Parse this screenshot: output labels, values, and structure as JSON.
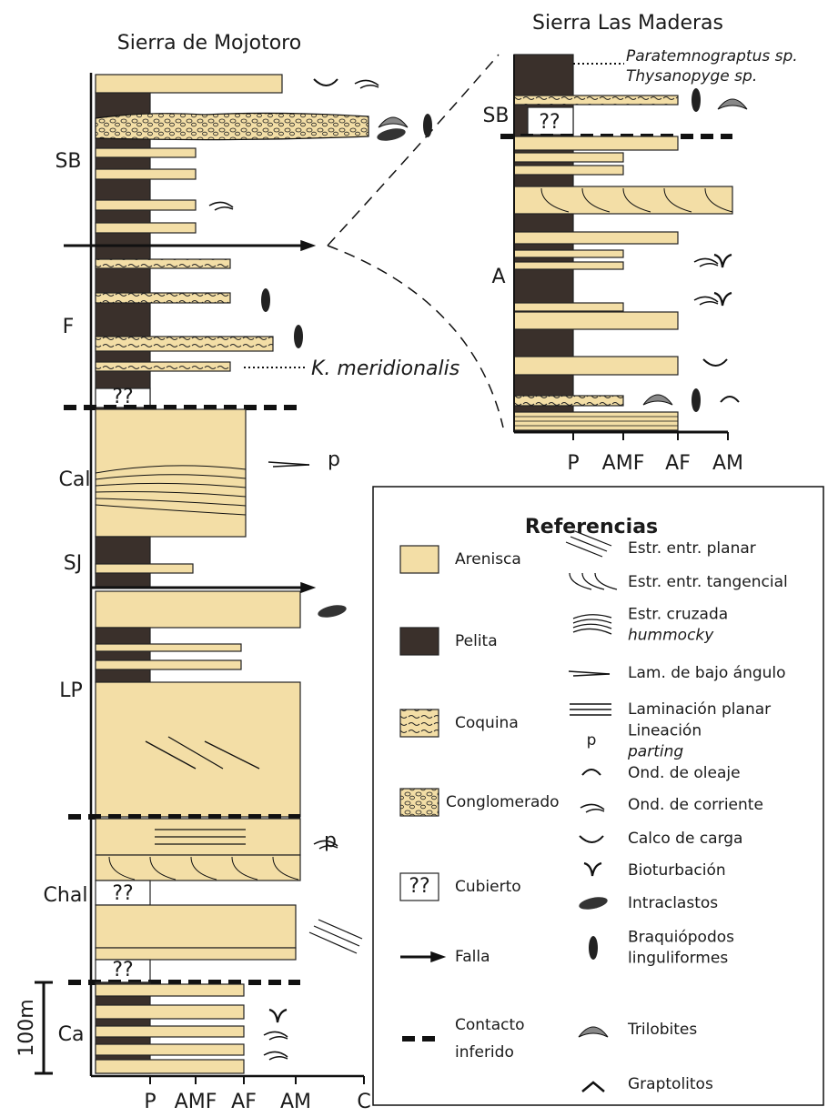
{
  "titles": {
    "left": "Sierra de Mojotoro",
    "right": "Sierra Las Maderas"
  },
  "left_column": {
    "units": [
      "SB",
      "F",
      "Cal",
      "SJ",
      "LP",
      "Chal",
      "Ca"
    ],
    "covered": [
      "??",
      "??",
      "??"
    ],
    "parting": [
      "p",
      "p"
    ],
    "fossil_note": "K. meridionalis",
    "axis": [
      "P",
      "AMF",
      "AF",
      "AM",
      "C"
    ],
    "scale": "100m"
  },
  "right_column": {
    "units": [
      "SB",
      "A"
    ],
    "covered": [
      "??"
    ],
    "fossil_notes": [
      "Paratemnograptus sp.",
      "Thysanopyge sp."
    ],
    "axis": [
      "P",
      "AMF",
      "AF",
      "AM"
    ]
  },
  "legend": {
    "title": "Referencias",
    "lithology": [
      [
        "Arenisca"
      ],
      [
        "Pelita"
      ],
      [
        "Coquina"
      ],
      [
        "Conglomerado"
      ],
      [
        "Cubierto"
      ],
      [
        "Falla"
      ],
      [
        "Contacto",
        "inferido"
      ]
    ],
    "covered_symbol": "??",
    "structures": [
      [
        "Estr. entr. planar"
      ],
      [
        "Estr. entr. tangencial"
      ],
      [
        "Estr. cruzada",
        "hummocky"
      ],
      [
        "Lam. de bajo ángulo"
      ],
      [
        "Laminación planar"
      ],
      [
        "Lineación",
        "parting"
      ],
      [
        "Ond. de oleaje"
      ],
      [
        "Ond. de corriente"
      ],
      [
        "Calco de carga"
      ],
      [
        "Bioturbación"
      ],
      [
        "Intraclastos"
      ],
      [
        "Braquiópodos",
        "linguliformes"
      ],
      [
        "Trilobites"
      ],
      [
        "Graptolitos"
      ]
    ],
    "parting_symbol": "p"
  }
}
